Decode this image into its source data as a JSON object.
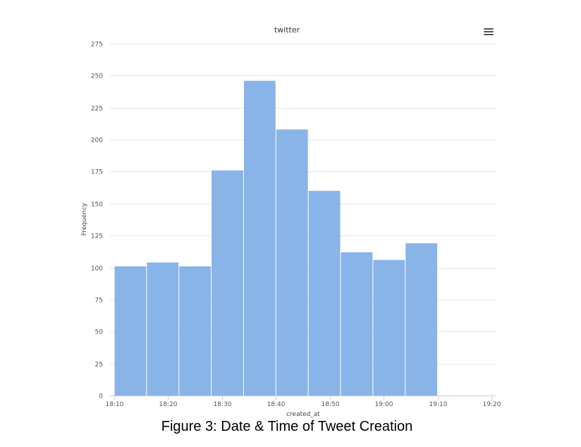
{
  "caption": "Figure 3: Date & Time of Tweet Creation",
  "menu": {
    "icon": "hamburger-menu-icon"
  },
  "colors": {
    "bar": "#89b4e8",
    "grid": "#e6e6e6",
    "axis": "#cccccc",
    "background": "#ffffff"
  },
  "chart_data": {
    "type": "bar",
    "title": "twitter",
    "xlabel": "created_at",
    "ylabel": "Frequency",
    "ylim": [
      0,
      275
    ],
    "yticks": [
      0,
      25,
      50,
      75,
      100,
      125,
      150,
      175,
      200,
      225,
      250,
      275
    ],
    "xlim": [
      "18:10",
      "19:20"
    ],
    "xticks": [
      "18:10",
      "18:20",
      "18:30",
      "18:40",
      "18:50",
      "19:00",
      "19:10",
      "19:20"
    ],
    "bins": [
      {
        "start": "18:10",
        "end": "18:16",
        "value": 101
      },
      {
        "start": "18:16",
        "end": "18:22",
        "value": 104
      },
      {
        "start": "18:22",
        "end": "18:28",
        "value": 101
      },
      {
        "start": "18:28",
        "end": "18:34",
        "value": 176
      },
      {
        "start": "18:34",
        "end": "18:40",
        "value": 246
      },
      {
        "start": "18:40",
        "end": "18:46",
        "value": 208
      },
      {
        "start": "18:46",
        "end": "18:52",
        "value": 160
      },
      {
        "start": "18:52",
        "end": "18:58",
        "value": 112
      },
      {
        "start": "18:58",
        "end": "19:04",
        "value": 106
      },
      {
        "start": "19:04",
        "end": "19:10",
        "value": 119
      }
    ],
    "grid": true,
    "legend": false
  }
}
